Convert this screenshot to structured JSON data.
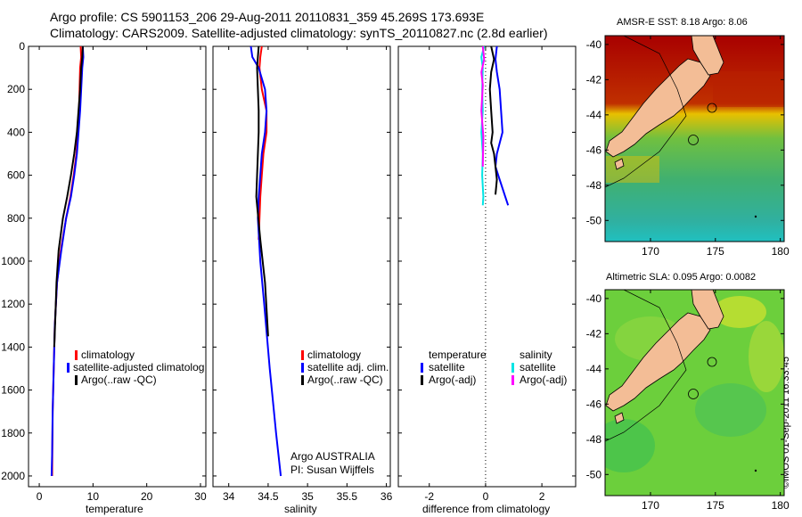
{
  "header": {
    "line1": "Argo profile: CS 5901153_206 29-Aug-2011 20110831_359 45.269S 173.693E",
    "line2": "Climatology: CARS2009. Satellite-adjusted climatology: synTS_20110827.nc (2.8d earlier)"
  },
  "colors": {
    "climatology": "#ff0000",
    "satellite": "#0000ff",
    "argo": "#000000",
    "sal_satellite": "#00e5e5",
    "sal_argo": "#ff00ff",
    "land": "#f3bd96"
  },
  "panels": {
    "temperature": {
      "xlabel": "temperature",
      "legend": [
        "climatology",
        "satellite-adjusted climatolog",
        "Argo(..raw -QC)"
      ]
    },
    "salinity": {
      "xlabel": "salinity",
      "legend": [
        "climatology",
        "satellite adj. clim.",
        "Argo(..raw -QC)"
      ],
      "note1": "Argo AUSTRALIA",
      "note2": "PI: Susan Wijffels"
    },
    "difference": {
      "xlabel": "difference from climatology",
      "legend_head_temp": "temperature",
      "legend_head_sal": "salinity",
      "legend_temp": [
        "satellite",
        "Argo(-adj)"
      ],
      "legend_sal": [
        "satellite",
        "Argo(-adj)"
      ]
    }
  },
  "maps": {
    "sst_title": "AMSR-E SST: 8.18 Argo: 8.06",
    "sla_title": "Altimetric SLA: 0.095 Argo: 0.0082",
    "lat_ticks": [
      "-40",
      "-42",
      "-44",
      "-46",
      "-48",
      "-50"
    ],
    "lon_ticks": [
      "170",
      "175",
      "180"
    ]
  },
  "stamp": "©IMOS 01-Sep-2011 16:33:45",
  "chart_data": [
    {
      "type": "line",
      "name": "temperature",
      "xlabel": "temperature",
      "ylabel": "",
      "xlim": [
        -2,
        31
      ],
      "ylim": [
        0,
        2050
      ],
      "x_ticks": [
        0,
        10,
        20,
        30
      ],
      "y_ticks": [
        0,
        200,
        400,
        600,
        800,
        1000,
        1200,
        1400,
        1600,
        1800,
        2000
      ],
      "series": [
        {
          "name": "climatology",
          "color": "#ff0000",
          "x": [
            7.7,
            7.8,
            7.6,
            7.5,
            7.4,
            7.2,
            6.9,
            6.4,
            5.8,
            5.0,
            4.0,
            3.3,
            2.9,
            2.7,
            2.5,
            2.4
          ],
          "y": [
            0,
            50,
            100,
            200,
            300,
            400,
            500,
            600,
            700,
            800,
            950,
            1100,
            1300,
            1500,
            1700,
            2000
          ]
        },
        {
          "name": "satellite-adjusted climatology",
          "color": "#0000ff",
          "x": [
            8.1,
            8.2,
            8.0,
            7.8,
            7.6,
            7.3,
            7.0,
            6.5,
            5.9,
            5.0,
            4.1,
            3.3,
            2.9,
            2.7,
            2.5,
            2.4,
            2.3
          ],
          "y": [
            0,
            50,
            100,
            200,
            300,
            400,
            500,
            600,
            700,
            800,
            950,
            1100,
            1300,
            1500,
            1700,
            1900,
            2000
          ]
        },
        {
          "name": "Argo(..raw -QC)",
          "color": "#000000",
          "x": [
            8.1,
            8.0,
            7.8,
            7.6,
            7.3,
            7.0,
            6.5,
            5.9,
            5.2,
            4.4,
            3.6,
            3.2,
            3.0,
            2.8
          ],
          "y": [
            0,
            50,
            100,
            200,
            300,
            400,
            500,
            600,
            700,
            800,
            950,
            1100,
            1250,
            1400
          ]
        }
      ]
    },
    {
      "type": "line",
      "name": "salinity",
      "xlabel": "salinity",
      "ylabel": "",
      "xlim": [
        33.8,
        36.05
      ],
      "ylim": [
        0,
        2050
      ],
      "x_ticks": [
        34,
        34.5,
        35,
        35.5,
        36
      ],
      "y_ticks": [
        0,
        200,
        400,
        600,
        800,
        1000,
        1200,
        1400,
        1600,
        1800,
        2000
      ],
      "series": [
        {
          "name": "climatology",
          "color": "#ff0000",
          "x": [
            34.42,
            34.4,
            34.39,
            34.42,
            34.48,
            34.48,
            34.44,
            34.42,
            34.4,
            34.39,
            34.38
          ],
          "y": [
            0,
            50,
            100,
            200,
            300,
            400,
            500,
            600,
            700,
            800,
            900
          ]
        },
        {
          "name": "satellite adj. clim.",
          "color": "#0000ff",
          "x": [
            34.28,
            34.3,
            34.38,
            34.46,
            34.48,
            34.46,
            34.42,
            34.4,
            34.38,
            34.37,
            34.4,
            34.45,
            34.52,
            34.6,
            34.66
          ],
          "y": [
            0,
            50,
            100,
            200,
            300,
            400,
            500,
            600,
            700,
            800,
            1000,
            1200,
            1500,
            1800,
            2000
          ]
        },
        {
          "name": "Argo(..raw -QC)",
          "color": "#000000",
          "x": [
            34.38,
            34.37,
            34.36,
            34.37,
            34.38,
            34.38,
            34.37,
            34.36,
            34.35,
            34.4,
            34.46,
            34.5
          ],
          "y": [
            0,
            50,
            100,
            200,
            300,
            400,
            500,
            600,
            700,
            900,
            1100,
            1350
          ]
        }
      ]
    },
    {
      "type": "line",
      "name": "difference from climatology",
      "xlabel": "difference from climatology",
      "ylabel": "",
      "xlim": [
        -3.1,
        3.2
      ],
      "ylim": [
        0,
        2050
      ],
      "x_ticks": [
        -2,
        0,
        2
      ],
      "y_ticks": [
        0,
        200,
        400,
        600,
        800,
        1000,
        1200,
        1400,
        1600,
        1800,
        2000
      ],
      "series": [
        {
          "name": "temperature satellite",
          "color": "#0000ff",
          "x": [
            0.4,
            0.35,
            0.4,
            0.5,
            0.55,
            0.6,
            0.4,
            0.35,
            0.5,
            0.7,
            0.8
          ],
          "y": [
            0,
            60,
            120,
            200,
            300,
            400,
            500,
            560,
            620,
            700,
            740
          ]
        },
        {
          "name": "temperature Argo(-adj)",
          "color": "#000000",
          "x": [
            0.2,
            0.3,
            0.2,
            0.15,
            0.2,
            0.25,
            0.2,
            0.3,
            0.35,
            0.4,
            0.35
          ],
          "y": [
            0,
            60,
            120,
            200,
            300,
            400,
            450,
            500,
            560,
            620,
            690
          ]
        },
        {
          "name": "salinity satellite",
          "color": "#00e5e5",
          "x": [
            -0.05,
            -0.15,
            -0.1,
            -0.12,
            -0.1,
            -0.15,
            -0.1,
            -0.12,
            -0.08,
            -0.1
          ],
          "y": [
            0,
            50,
            100,
            200,
            300,
            400,
            500,
            600,
            700,
            740
          ]
        },
        {
          "name": "salinity Argo(-adj)",
          "color": "#ff00ff",
          "x": [
            -0.1,
            -0.05,
            -0.15,
            -0.1,
            -0.15,
            -0.08,
            -0.1
          ],
          "y": [
            0,
            60,
            120,
            180,
            300,
            420,
            560
          ]
        }
      ]
    }
  ]
}
